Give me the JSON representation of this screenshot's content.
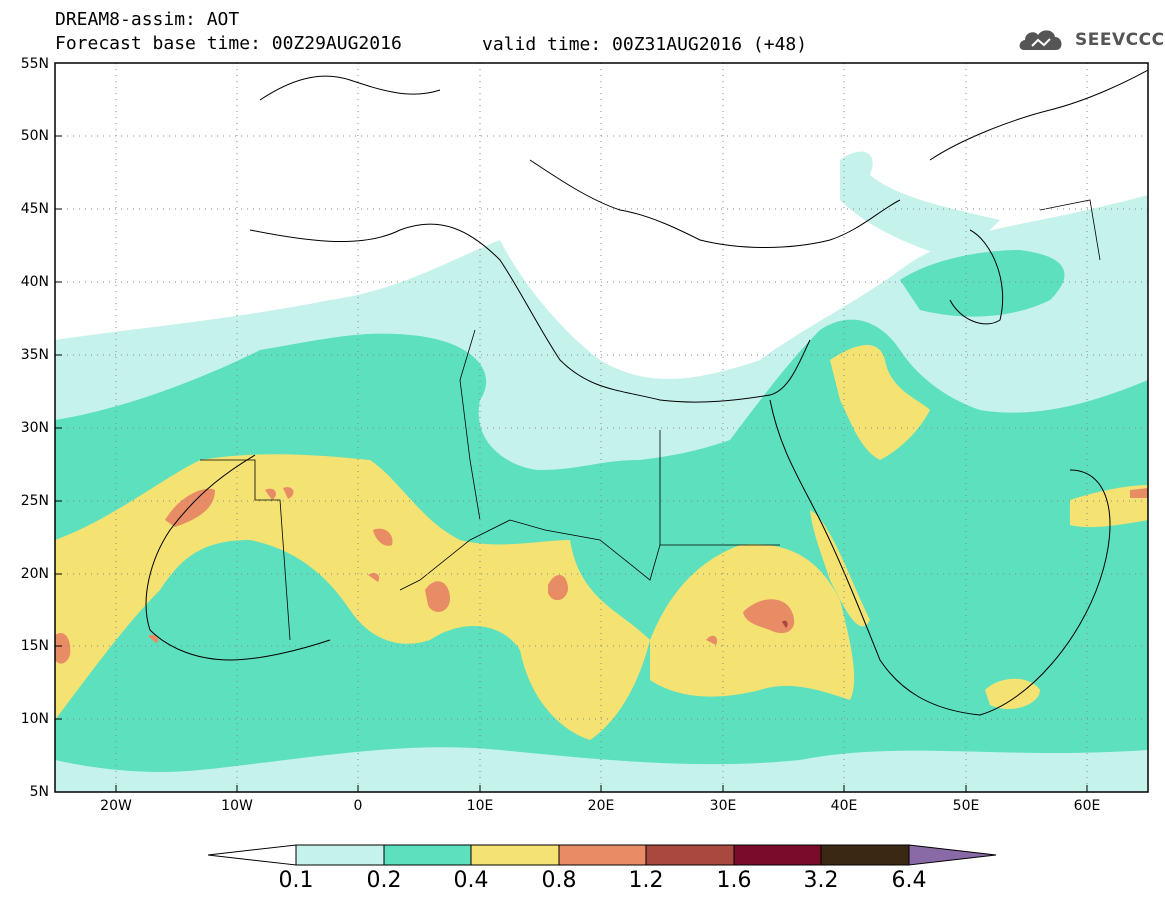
{
  "header": {
    "title_line1": "DREAM8-assim: AOT",
    "title_line2": "Forecast base time: 00Z29AUG2016",
    "valid_time": "valid time: 00Z31AUG2016 (+48)",
    "logo_text": "SEEVCCC",
    "logo_icon": "cloud-icon"
  },
  "map": {
    "projection": "lat-lon",
    "lon_range": [
      -25,
      65
    ],
    "lat_range": [
      5,
      55
    ],
    "lat_labels": [
      "55N",
      "50N",
      "45N",
      "40N",
      "35N",
      "30N",
      "25N",
      "20N",
      "15N",
      "10N",
      "5N"
    ],
    "lon_labels": [
      "20W",
      "10W",
      "0",
      "10E",
      "20E",
      "30E",
      "40E",
      "50E",
      "60E"
    ],
    "grid": "dotted"
  },
  "legend": {
    "thresholds": [
      "0.1",
      "0.2",
      "0.4",
      "0.8",
      "1.2",
      "1.6",
      "3.2",
      "6.4"
    ],
    "colors": [
      "#ffffff",
      "#c6f2ec",
      "#5ce0be",
      "#f4e272",
      "#e88c66",
      "#a8483f",
      "#7a0b2a",
      "#3a2714",
      "#8a6aa6"
    ]
  }
}
